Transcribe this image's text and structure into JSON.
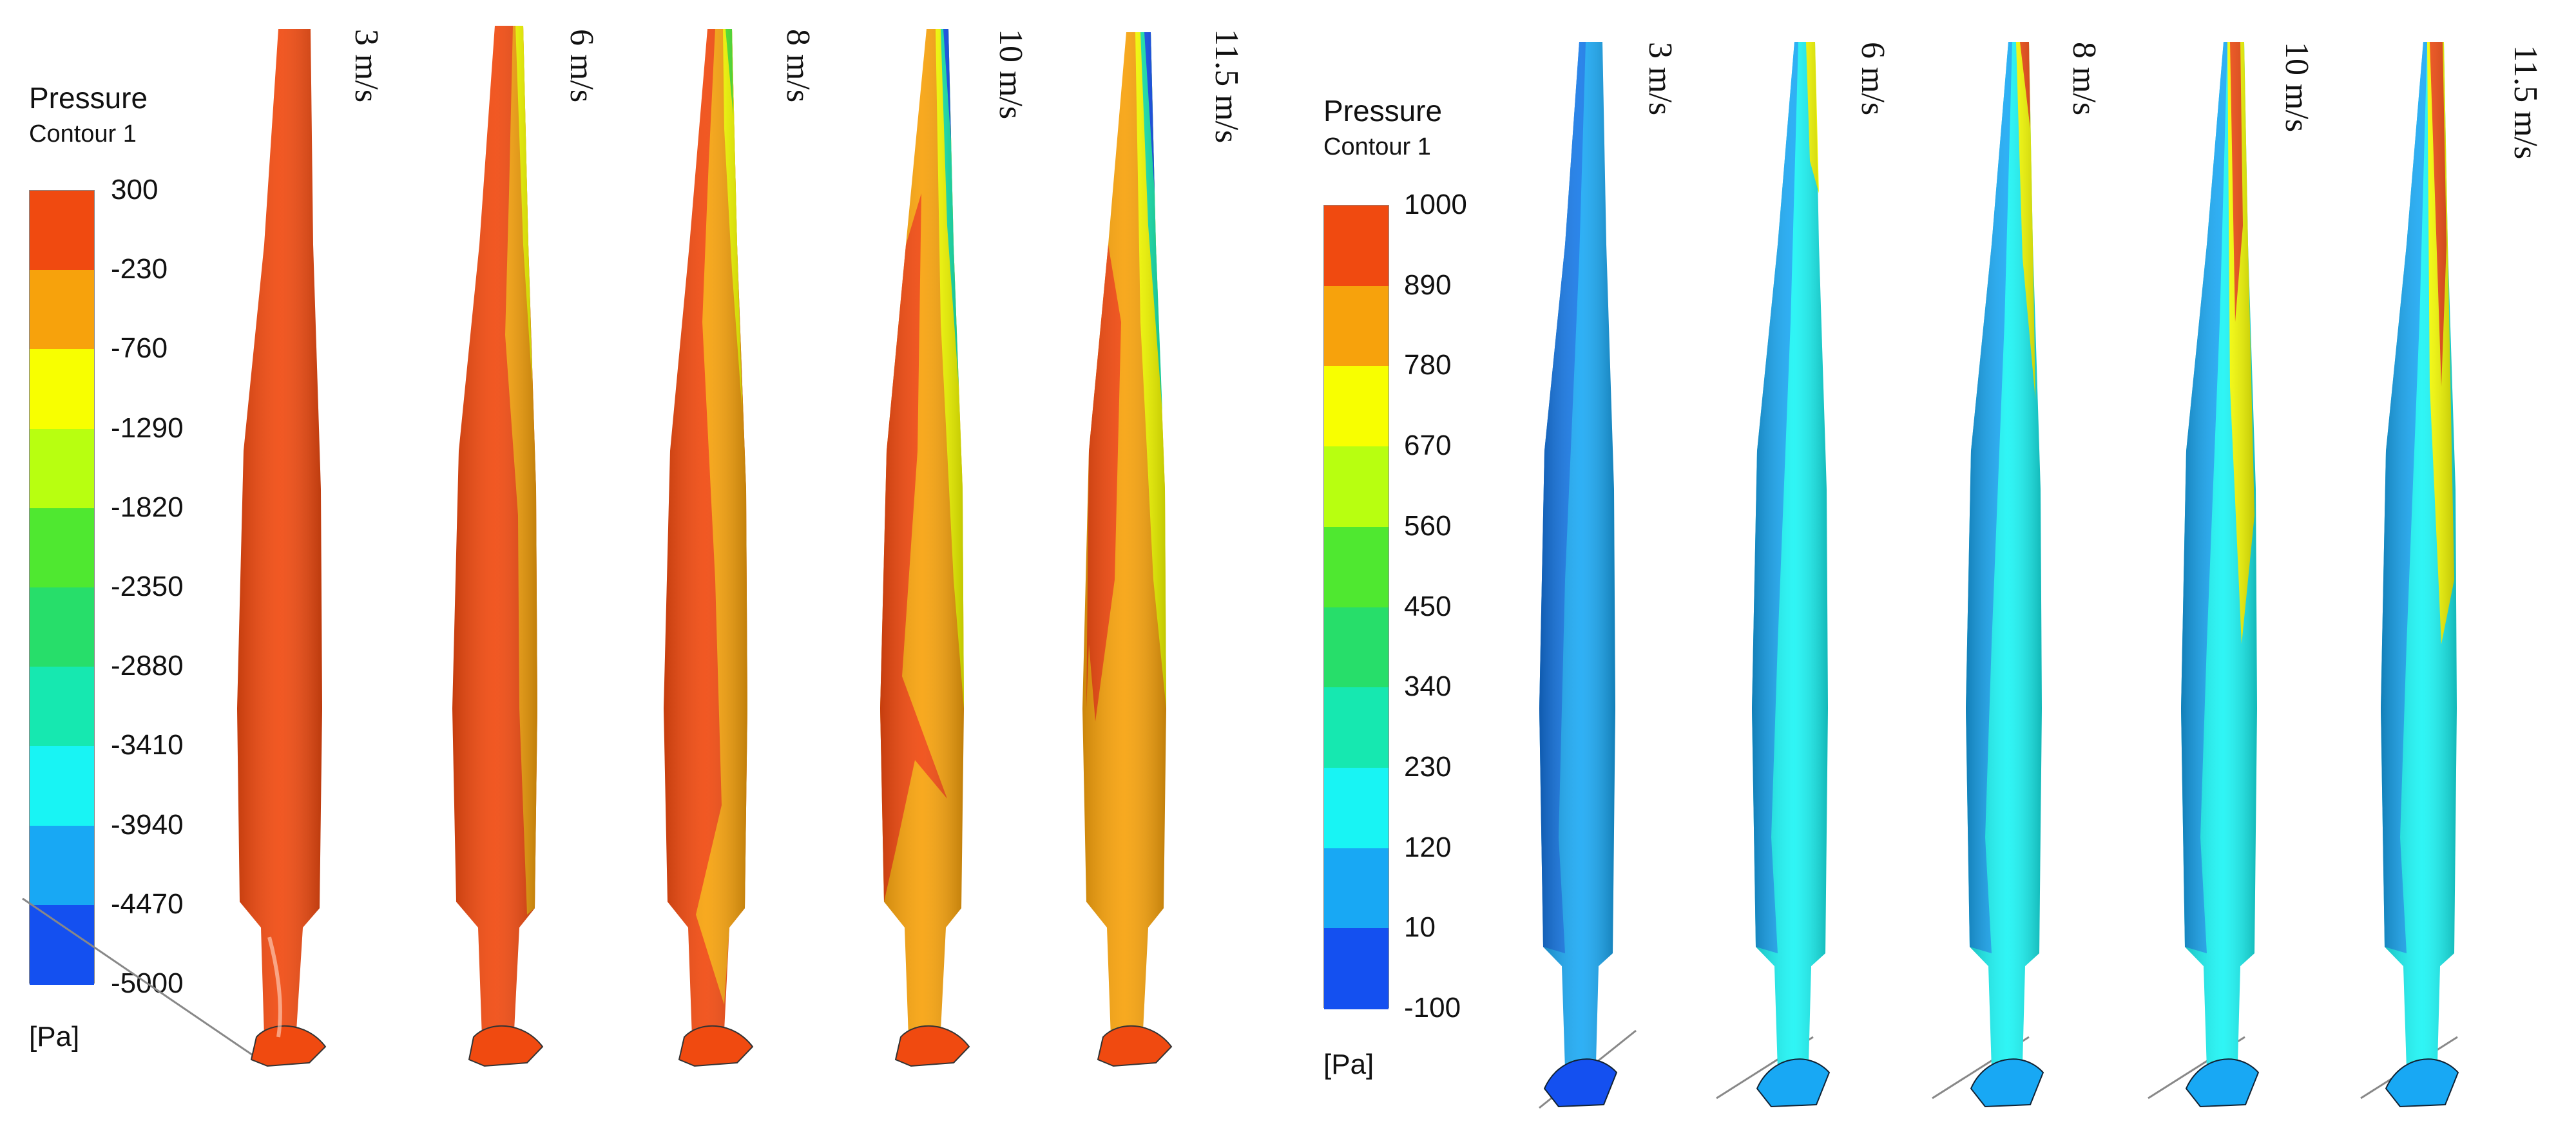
{
  "panels": {
    "left": {
      "legend": {
        "title": "Pressure",
        "subtitle": "Contour 1",
        "unit": "[Pa]",
        "ticks": [
          "300",
          "-230",
          "-760",
          "-1290",
          "-1820",
          "-2350",
          "-2880",
          "-3410",
          "-3940",
          "-4470",
          "-5000"
        ],
        "band_colors": [
          "#f04a10",
          "#f7a20c",
          "#f8ff00",
          "#b8ff10",
          "#4fe830",
          "#27de6a",
          "#16e8b0",
          "#18f4f4",
          "#18a8f4",
          "#1450f0"
        ]
      },
      "speeds": [
        "3 m/s",
        "6 m/s",
        "8 m/s",
        "10 m/s",
        "11.5 m/s"
      ]
    },
    "right": {
      "legend": {
        "title": "Pressure",
        "subtitle": "Contour 1",
        "unit": "[Pa]",
        "ticks": [
          "1000",
          "890",
          "780",
          "670",
          "560",
          "450",
          "340",
          "230",
          "120",
          "10",
          "-100"
        ],
        "band_colors": [
          "#f04a10",
          "#f7a20c",
          "#f8ff00",
          "#b8ff10",
          "#4fe830",
          "#27de6a",
          "#16e8b0",
          "#18f4f4",
          "#18a8f4",
          "#1450f0"
        ]
      },
      "speeds": [
        "3 m/s",
        "6 m/s",
        "8 m/s",
        "10 m/s",
        "11.5 m/s"
      ]
    }
  }
}
